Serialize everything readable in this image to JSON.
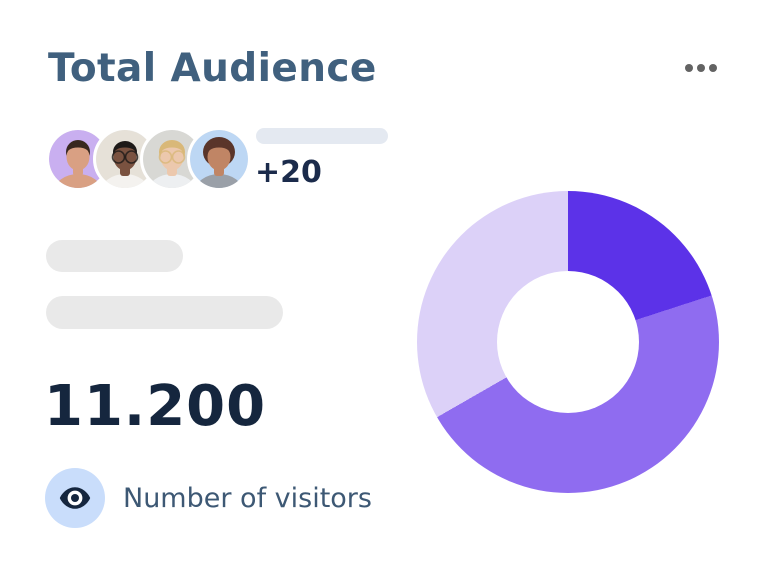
{
  "card": {
    "title": "Total Audience",
    "menu": {
      "icon": "ellipsis-menu-icon"
    }
  },
  "audience": {
    "overflow_label": "+20",
    "avatars": [
      {
        "name": "user-avatar-1",
        "bg": "#c9aff0",
        "skin": "#d9a083",
        "hair": "#38281f",
        "shirt": "#d9a083",
        "glasses": false,
        "hair_rx": 12,
        "hair_ry": 12
      },
      {
        "name": "user-avatar-2",
        "bg": "#e6e1d8",
        "skin": "#7a5240",
        "hair": "#1e1a18",
        "shirt": "#f4f2ef",
        "glasses": true,
        "hair_rx": 12,
        "hair_ry": 11
      },
      {
        "name": "user-avatar-3",
        "bg": "#d8d8d4",
        "skin": "#ecc8ad",
        "hair": "#d9b878",
        "shirt": "#edeff1",
        "glasses": true,
        "hair_rx": 13,
        "hair_ry": 12
      },
      {
        "name": "user-avatar-4",
        "bg": "#bdd7f4",
        "skin": "#c08565",
        "hair": "#5a352a",
        "shirt": "#9aa0a8",
        "glasses": false,
        "hair_rx": 16,
        "hair_ry": 15
      }
    ]
  },
  "stats": {
    "total_visitors": "11.200",
    "caption": "Number of visitors",
    "icon": "eye-icon"
  },
  "colors": {
    "card_bg": "#ffffff",
    "title_color": "#40607e",
    "dots_color": "#636363",
    "pill_color": "#e4e9f1",
    "more_color": "#1b2b4b",
    "skeleton_color": "#e9e9e9",
    "total_color": "#15263e",
    "caption_color": "#3d5874",
    "chip_bg": "#c9ddfb",
    "eye_color": "#15263e"
  },
  "chart_data": {
    "type": "pie",
    "subtype": "donut",
    "series": [
      {
        "name": "dark-purple-segment",
        "value_pct": 20.0,
        "color": "#5c32e8"
      },
      {
        "name": "medium-purple-segment",
        "value_pct": 46.7,
        "color": "#8f6cf0"
      },
      {
        "name": "light-purple-segment",
        "value_pct": 33.3,
        "color": "#dcd1f8"
      }
    ],
    "start_angle_deg": 0,
    "inner_radius_ratio": 0.47,
    "legend": "none",
    "labels": "none"
  }
}
